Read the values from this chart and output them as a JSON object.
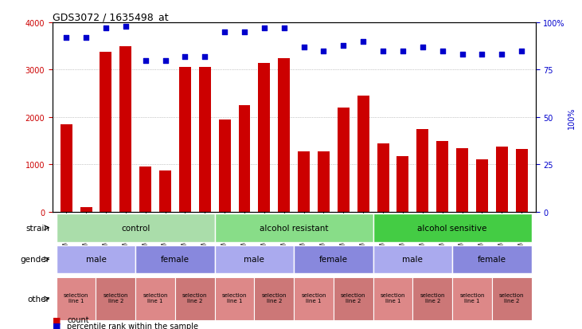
{
  "title": "GDS3072 / 1635498_at",
  "samples": [
    "GSM183815",
    "GSM183816",
    "GSM183990",
    "GSM183991",
    "GSM183817",
    "GSM183856",
    "GSM183992",
    "GSM183993",
    "GSM183887",
    "GSM183888",
    "GSM184121",
    "GSM184122",
    "GSM183936",
    "GSM183989",
    "GSM184123",
    "GSM184124",
    "GSM183857",
    "GSM183858",
    "GSM183994",
    "GSM184118",
    "GSM183875",
    "GSM183886",
    "GSM184119",
    "GSM184120"
  ],
  "counts": [
    1850,
    100,
    3380,
    3500,
    950,
    880,
    3050,
    3050,
    1950,
    2250,
    3150,
    3250,
    1280,
    1280,
    2200,
    2450,
    1450,
    1180,
    1750,
    1500,
    1350,
    1100,
    1380,
    1320
  ],
  "percentile_ranks": [
    92,
    92,
    97,
    98,
    80,
    80,
    82,
    82,
    95,
    95,
    97,
    97,
    87,
    85,
    88,
    90,
    85,
    85,
    87,
    85,
    83,
    83,
    83,
    85
  ],
  "bar_color": "#cc0000",
  "dot_color": "#0000cc",
  "ylim_left": [
    0,
    4000
  ],
  "ylim_right": [
    0,
    100
  ],
  "yticks_left": [
    0,
    1000,
    2000,
    3000,
    4000
  ],
  "yticks_right": [
    0,
    25,
    50,
    75,
    100
  ],
  "strain_groups": [
    {
      "label": "control",
      "start": 0,
      "end": 8,
      "color": "#aaddaa"
    },
    {
      "label": "alcohol resistant",
      "start": 8,
      "end": 16,
      "color": "#88dd88"
    },
    {
      "label": "alcohol sensitive",
      "start": 16,
      "end": 24,
      "color": "#44cc44"
    }
  ],
  "gender_groups": [
    {
      "label": "male",
      "start": 0,
      "end": 4,
      "color": "#aaaaee"
    },
    {
      "label": "female",
      "start": 4,
      "end": 8,
      "color": "#8888dd"
    },
    {
      "label": "male",
      "start": 8,
      "end": 12,
      "color": "#aaaaee"
    },
    {
      "label": "female",
      "start": 12,
      "end": 16,
      "color": "#8888dd"
    },
    {
      "label": "male",
      "start": 16,
      "end": 20,
      "color": "#aaaaee"
    },
    {
      "label": "female",
      "start": 20,
      "end": 24,
      "color": "#8888dd"
    }
  ],
  "other_groups": [
    {
      "label": "selection\nline 1",
      "start": 0,
      "end": 2,
      "color": "#dd8888"
    },
    {
      "label": "selection\nline 2",
      "start": 2,
      "end": 4,
      "color": "#cc7777"
    },
    {
      "label": "selection\nline 1",
      "start": 4,
      "end": 6,
      "color": "#dd8888"
    },
    {
      "label": "selection\nline 2",
      "start": 6,
      "end": 8,
      "color": "#cc7777"
    },
    {
      "label": "selection\nline 1",
      "start": 8,
      "end": 10,
      "color": "#dd8888"
    },
    {
      "label": "selection\nline 2",
      "start": 10,
      "end": 12,
      "color": "#cc7777"
    },
    {
      "label": "selection\nline 1",
      "start": 12,
      "end": 14,
      "color": "#dd8888"
    },
    {
      "label": "selection\nline 2",
      "start": 14,
      "end": 16,
      "color": "#cc7777"
    },
    {
      "label": "selection\nline 1",
      "start": 16,
      "end": 18,
      "color": "#dd8888"
    },
    {
      "label": "selection\nline 2",
      "start": 18,
      "end": 20,
      "color": "#cc7777"
    },
    {
      "label": "selection\nline 1",
      "start": 20,
      "end": 22,
      "color": "#dd8888"
    },
    {
      "label": "selection\nline 2",
      "start": 22,
      "end": 24,
      "color": "#cc7777"
    }
  ],
  "bg_color": "#ffffff",
  "grid_color": "#999999",
  "label_strain": "strain",
  "label_gender": "gender",
  "label_other": "other",
  "legend_count": "count",
  "legend_percentile": "percentile rank within the sample"
}
